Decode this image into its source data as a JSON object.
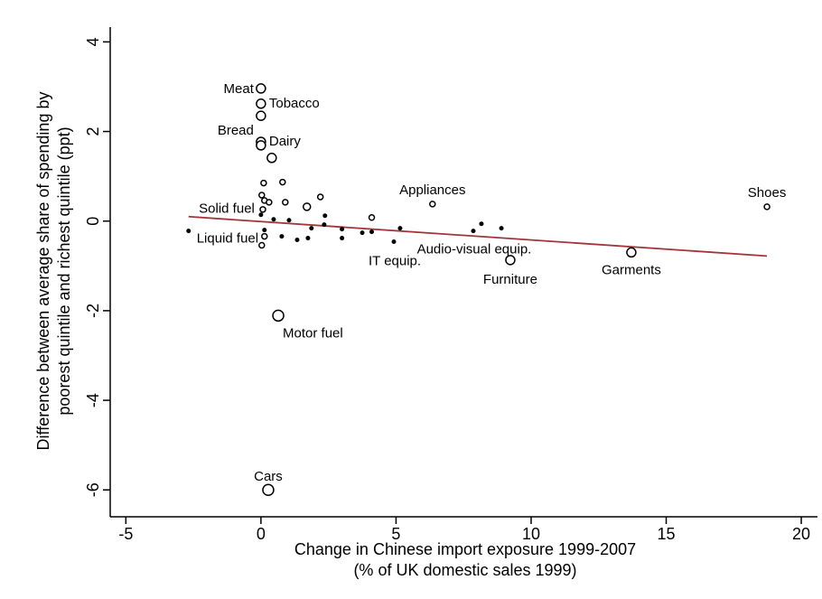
{
  "chart_data": {
    "type": "scatter",
    "xlabel": [
      "Change in Chinese import exposure 1999-2007",
      "(% of UK domestic sales 1999)"
    ],
    "ylabel": [
      "Difference between average share of spending by",
      "poorest quintile and richest quintile (ppt)"
    ],
    "xlim": [
      -5.58,
      20.6
    ],
    "ylim": [
      -6.6,
      4.33
    ],
    "xticks": [
      -5,
      0,
      5,
      10,
      15,
      20
    ],
    "yticks": [
      -6,
      -4,
      -2,
      0,
      2,
      4
    ],
    "grid": false,
    "series": [
      {
        "color": "#000000",
        "x": [
          0,
          0,
          0,
          0,
          0,
          0.4,
          0.64,
          0.27,
          9.23,
          13.71,
          18.73,
          6.35,
          0,
          -2.68,
          4.92,
          7.86,
          0.1,
          0.8,
          0.03,
          0.13,
          0.3,
          0.9,
          2.2,
          1.7,
          2.37,
          4.1,
          0.47,
          1.04,
          0.07,
          2.34,
          1.87,
          3.0,
          3.75,
          4.1,
          5.15,
          8.16,
          8.9,
          0.13,
          0.77,
          1.34,
          1.74,
          3.0,
          0.13,
          0.03
        ],
        "y": [
          2.96,
          2.62,
          2.35,
          1.77,
          1.69,
          1.41,
          -2.11,
          -6.0,
          -0.87,
          -0.7,
          0.32,
          0.38,
          0.14,
          -0.22,
          -0.46,
          -0.22,
          0.85,
          0.87,
          0.58,
          0.46,
          0.42,
          0.42,
          0.54,
          0.32,
          0.12,
          0.08,
          0.04,
          0.02,
          0.26,
          -0.08,
          -0.16,
          -0.18,
          -0.26,
          -0.24,
          -0.16,
          -0.06,
          -0.16,
          -0.2,
          -0.34,
          -0.42,
          -0.38,
          -0.38,
          -0.34,
          -0.54
        ],
        "sizes": [
          5,
          5,
          5,
          5,
          5,
          5,
          6,
          6,
          5,
          5,
          3,
          3,
          2,
          2,
          2,
          2,
          3,
          3,
          3,
          3,
          3,
          3,
          3,
          4,
          2,
          3,
          2,
          2,
          3,
          2,
          2,
          2,
          2,
          2,
          2,
          2,
          2,
          2,
          2,
          2,
          2,
          2,
          3,
          3
        ],
        "labels": [
          "Meat",
          "Tobacco",
          null,
          "Bread",
          "Dairy",
          null,
          "Motor fuel",
          "Cars",
          "Furniture",
          "Garments",
          "Shoes",
          "Appliances",
          "Solid fuel",
          "Liquid fuel",
          "IT equip.",
          "Audio-visual equip.",
          null,
          null,
          null,
          null,
          null,
          null,
          null,
          null,
          null,
          null,
          null,
          null,
          null,
          null,
          null,
          null,
          null,
          null,
          null,
          null,
          null,
          null,
          null,
          null,
          null,
          null,
          null,
          null
        ]
      }
    ],
    "fit_line": {
      "x": [
        -2.68,
        18.73
      ],
      "y": [
        0.1,
        -0.78
      ],
      "color": "#a0353a"
    }
  }
}
